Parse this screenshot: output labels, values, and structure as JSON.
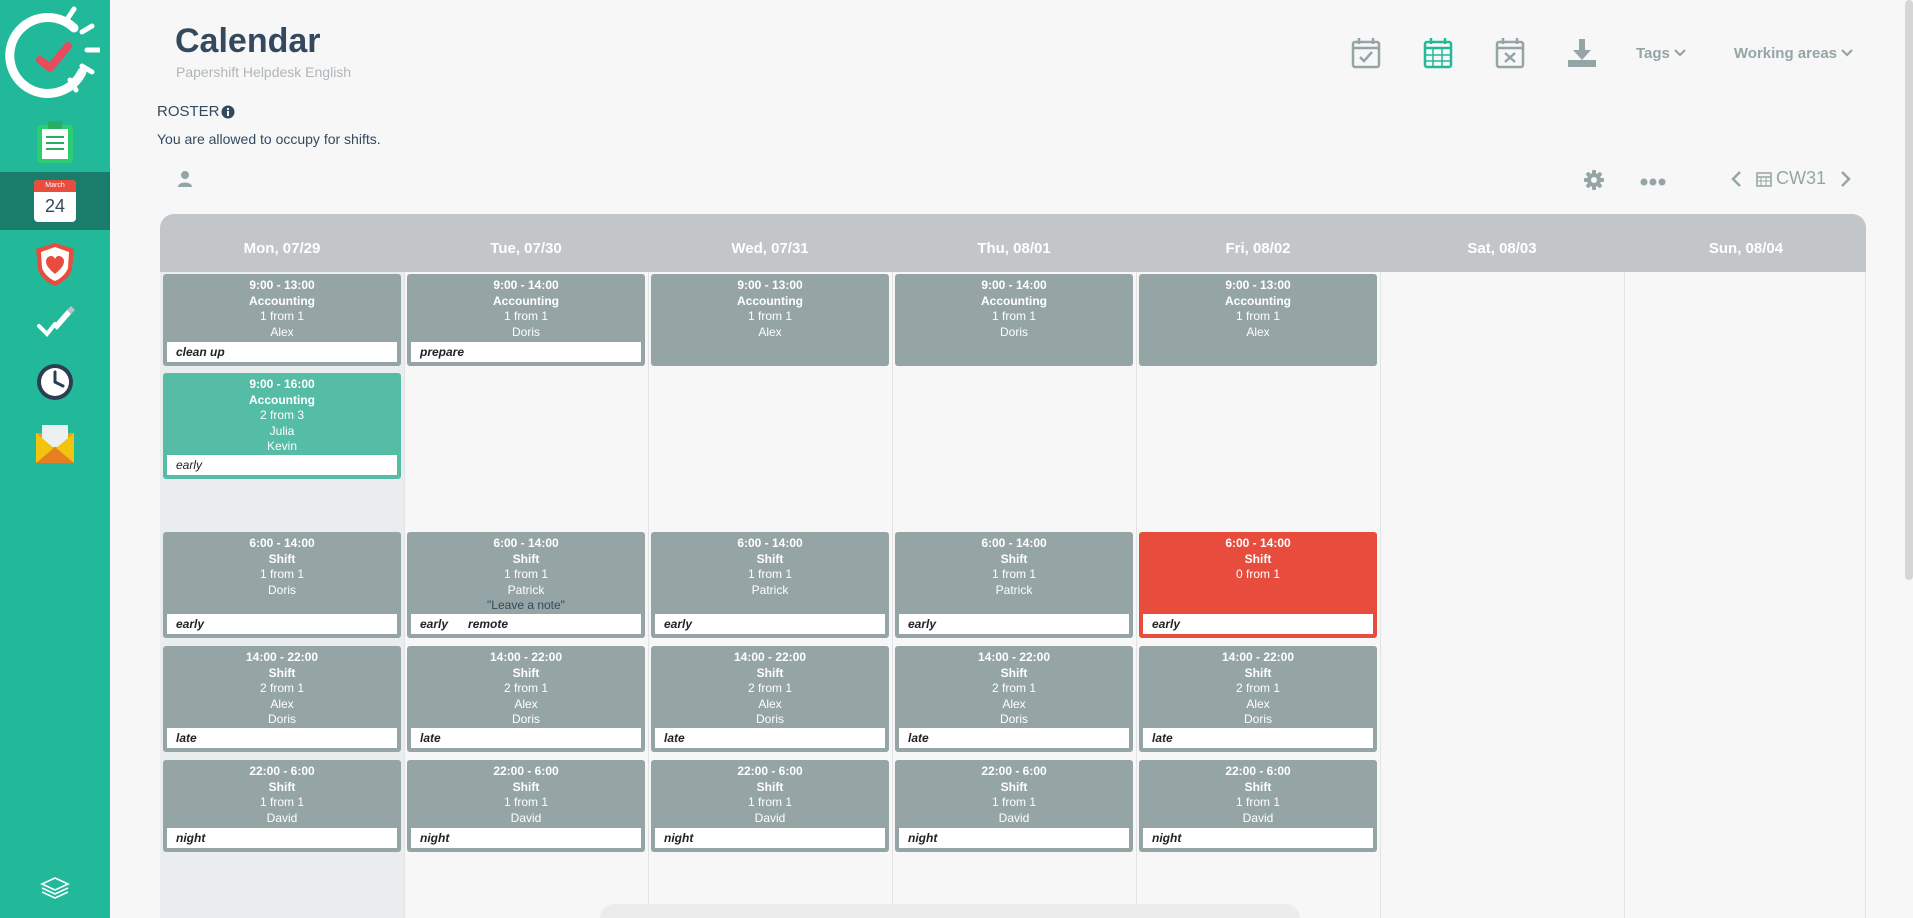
{
  "header": {
    "title": "Calendar",
    "subtitle": "Papershift Helpdesk English",
    "tags_label": "Tags",
    "working_areas_label": "Working areas"
  },
  "sidebar": {
    "calendar_month": "March",
    "calendar_day": "24"
  },
  "section": {
    "title": "ROSTER",
    "description": "You are allowed to occupy for shifts."
  },
  "week": {
    "label": "CW31"
  },
  "days": [
    "Mon, 07/29",
    "Tue, 07/30",
    "Wed, 07/31",
    "Thu, 08/01",
    "Fri, 08/02",
    "Sat, 08/03",
    "Sun, 08/04"
  ],
  "shifts": {
    "acc_mon": {
      "time": "9:00 - 13:00",
      "title": "Accounting",
      "count": "1 from 1",
      "people": [
        "Alex"
      ],
      "tags": [
        "clean up"
      ]
    },
    "acc_tue": {
      "time": "9:00 - 14:00",
      "title": "Accounting",
      "count": "1 from 1",
      "people": [
        "Doris"
      ],
      "tags": [
        "prepare"
      ]
    },
    "acc_wed": {
      "time": "9:00 - 13:00",
      "title": "Accounting",
      "count": "1 from 1",
      "people": [
        "Alex"
      ],
      "tags": []
    },
    "acc_thu": {
      "time": "9:00 - 14:00",
      "title": "Accounting",
      "count": "1 from 1",
      "people": [
        "Doris"
      ],
      "tags": []
    },
    "acc_fri": {
      "time": "9:00 - 13:00",
      "title": "Accounting",
      "count": "1 from 1",
      "people": [
        "Alex"
      ],
      "tags": []
    },
    "acc2_mon": {
      "time": "9:00 - 16:00",
      "title": "Accounting",
      "count": "2 from 3",
      "people": [
        "Julia",
        "Kevin"
      ],
      "tags": [
        "early"
      ]
    },
    "early_mon": {
      "time": "6:00 - 14:00",
      "title": "Shift",
      "count": "1 from 1",
      "people": [
        "Doris"
      ],
      "tags": [
        "early"
      ]
    },
    "early_tue": {
      "time": "6:00 - 14:00",
      "title": "Shift",
      "count": "1 from 1",
      "people": [
        "Patrick"
      ],
      "note": "\"Leave a note\"",
      "tags": [
        "early",
        "remote"
      ]
    },
    "early_wed": {
      "time": "6:00 - 14:00",
      "title": "Shift",
      "count": "1 from 1",
      "people": [
        "Patrick"
      ],
      "tags": [
        "early"
      ]
    },
    "early_thu": {
      "time": "6:00 - 14:00",
      "title": "Shift",
      "count": "1 from 1",
      "people": [
        "Patrick"
      ],
      "tags": [
        "early"
      ]
    },
    "early_fri": {
      "time": "6:00 - 14:00",
      "title": "Shift",
      "count": "0 from 1",
      "people": [],
      "tags": [
        "early"
      ]
    },
    "late_mon": {
      "time": "14:00 - 22:00",
      "title": "Shift",
      "count": "2 from 1",
      "people": [
        "Alex",
        "Doris"
      ],
      "tags": [
        "late"
      ]
    },
    "late_tue": {
      "time": "14:00 - 22:00",
      "title": "Shift",
      "count": "2 from 1",
      "people": [
        "Alex",
        "Doris"
      ],
      "tags": [
        "late"
      ]
    },
    "late_wed": {
      "time": "14:00 - 22:00",
      "title": "Shift",
      "count": "2 from 1",
      "people": [
        "Alex",
        "Doris"
      ],
      "tags": [
        "late"
      ]
    },
    "late_thu": {
      "time": "14:00 - 22:00",
      "title": "Shift",
      "count": "2 from 1",
      "people": [
        "Alex",
        "Doris"
      ],
      "tags": [
        "late"
      ]
    },
    "late_fri": {
      "time": "14:00 - 22:00",
      "title": "Shift",
      "count": "2 from 1",
      "people": [
        "Alex",
        "Doris"
      ],
      "tags": [
        "late"
      ]
    },
    "night_mon": {
      "time": "22:00 - 6:00",
      "title": "Shift",
      "count": "1 from 1",
      "people": [
        "David"
      ],
      "tags": [
        "night"
      ]
    },
    "night_tue": {
      "time": "22:00 - 6:00",
      "title": "Shift",
      "count": "1 from 1",
      "people": [
        "David"
      ],
      "tags": [
        "night"
      ]
    },
    "night_wed": {
      "time": "22:00 - 6:00",
      "title": "Shift",
      "count": "1 from 1",
      "people": [
        "David"
      ],
      "tags": [
        "night"
      ]
    },
    "night_thu": {
      "time": "22:00 - 6:00",
      "title": "Shift",
      "count": "1 from 1",
      "people": [
        "David"
      ],
      "tags": [
        "night"
      ]
    },
    "night_fri": {
      "time": "22:00 - 6:00",
      "title": "Shift",
      "count": "1 from 1",
      "people": [
        "David"
      ],
      "tags": [
        "night"
      ]
    }
  },
  "colors": {
    "brand": "#22b89a",
    "brand_dark": "#1a7d6b",
    "shift_gray": "#95a5a6",
    "shift_green": "#55bca5",
    "shift_red": "#e74c3c"
  }
}
